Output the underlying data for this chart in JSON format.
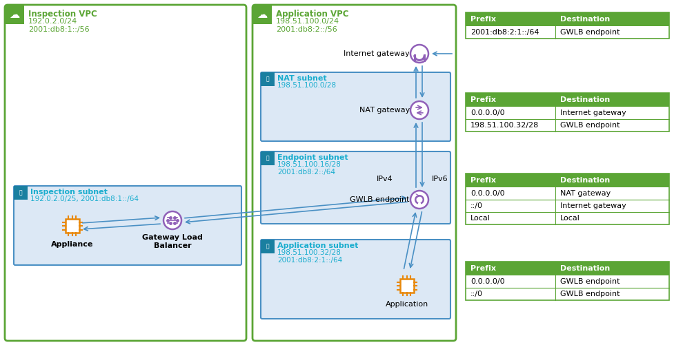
{
  "fig_width": 9.77,
  "fig_height": 5.04,
  "bg_color": "#ffffff",
  "green_border": "#5ba535",
  "green_text": "#5ba535",
  "blue_text": "#1aadce",
  "subnet_fill": "#dce8f5",
  "subnet_border": "#4a90c4",
  "teal_header": "#1a7fa0",
  "arrow_color": "#4a90c4",
  "purple_color": "#9060b8",
  "orange_color": "#e8880a",
  "table_header_green": "#5ba535",
  "vpc1_title": "Inspection VPC",
  "vpc1_ip1": "192.0.2.0/24",
  "vpc1_ip2": "2001:db8:1::/56",
  "vpc2_title": "Application VPC",
  "vpc2_ip1": "198.51.100.0/24",
  "vpc2_ip2": "2001:db8:2::/56",
  "subnet_insp_title": "Inspection subnet",
  "subnet_insp_ip": "192.0.2.0/25, 2001:db8:1::/64",
  "subnet_nat_title": "NAT subnet",
  "subnet_nat_ip": "198.51.100.0/28",
  "subnet_ep_title": "Endpoint subnet",
  "subnet_ep_ip1": "198.51.100.16/28",
  "subnet_ep_ip2": "2001:db8:2::/64",
  "subnet_app_title": "Application subnet",
  "subnet_app_ip1": "198.51.100.32/28",
  "subnet_app_ip2": "2001:db8:2:1::/64",
  "label_appliance": "Appliance",
  "label_gwlb": "Gateway Load\nBalancer",
  "label_nat_gw": "NAT gateway",
  "label_igw": "Internet gateway",
  "label_gwlb_ep": "GWLB endpoint",
  "label_application": "Application",
  "label_ipv4": "IPv4",
  "label_ipv6": "IPv6",
  "tables": [
    {
      "rows": [
        [
          "2001:db8:2:1::/64",
          "GWLB endpoint"
        ]
      ]
    },
    {
      "rows": [
        [
          "0.0.0.0/0",
          "Internet gateway"
        ],
        [
          "198.51.100.32/28",
          "GWLB endpoint"
        ]
      ]
    },
    {
      "rows": [
        [
          "0.0.0.0/0",
          "NAT gateway"
        ],
        [
          "::/0",
          "Internet gateway"
        ],
        [
          "Local",
          "Local"
        ]
      ]
    },
    {
      "rows": [
        [
          "0.0.0.0/0",
          "GWLB endpoint"
        ],
        [
          "::/0",
          "GWLB endpoint"
        ]
      ]
    }
  ]
}
